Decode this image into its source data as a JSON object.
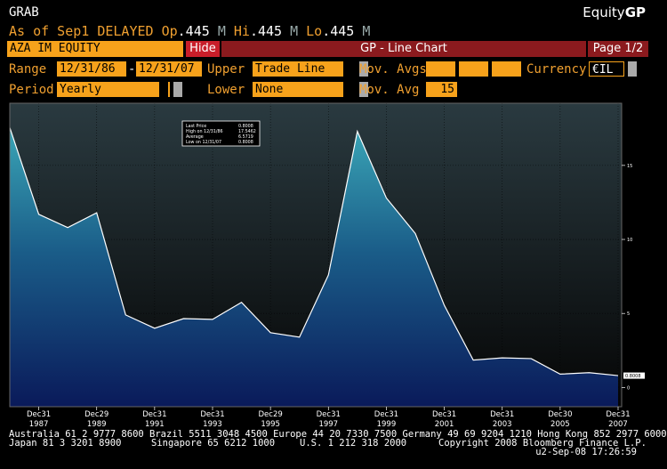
{
  "header": {
    "code": "GRAB",
    "brand_prefix": "Equity",
    "brand_suffix": "GP",
    "quote_line": {
      "as_of": "As of Sep1 DELAYED",
      "op_label": "Op",
      "op_value": ".445",
      "op_unit": "M",
      "hi_label": "Hi",
      "hi_value": ".445",
      "hi_unit": "M",
      "lo_label": "Lo",
      "lo_value": ".445",
      "lo_unit": "M"
    }
  },
  "bar": {
    "security": "AZA IM EQUITY",
    "hide": "Hide",
    "title": "GP - Line Chart",
    "page": "Page 1/2"
  },
  "controls": {
    "range_label": "Range",
    "range_start": "12/31/86",
    "range_sep": "-",
    "range_end": "12/31/07",
    "upper_label": "Upper",
    "upper_value": "Trade Line",
    "movavgs_label": "Mov. Avgs",
    "movavgs_values": [
      "",
      "",
      ""
    ],
    "currency_label": "Currency",
    "currency_value": "€IL",
    "period_label": "Period",
    "period_value": "Yearly",
    "lower_label": "Lower",
    "lower_value": "None",
    "movavg_label": "Mov. Avg",
    "movavg_value": "15"
  },
  "legend_box": {
    "lines": [
      {
        "label": "Last Price",
        "value": "0.8008"
      },
      {
        "label": "High on 12/31/86",
        "value": "17.5462"
      },
      {
        "label": "Average",
        "value": "6.5719"
      },
      {
        "label": "Low on 12/31/07",
        "value": "0.8008"
      }
    ]
  },
  "last_price_tag": "0.8008",
  "footer": {
    "line1": "Australia 61 2 9777 8600 Brazil 5511 3048 4500 Europe 44 20 7330 7500 Germany 49 69 9204 1210 Hong Kong 852 2977 6000",
    "line2_left": "Japan 81 3 3201 8900",
    "line2_mid1": "Singapore 65 6212 1000",
    "line2_mid2": "U.S. 1 212 318 2000",
    "line2_right": "Copyright 2008 Bloomberg Finance L.P.",
    "line3": "u2-Sep-08 17:26:59"
  },
  "chart_data": {
    "type": "area",
    "x": [
      "12/31/1986",
      "12/31/1987",
      "12/31/1988",
      "12/29/1989",
      "12/31/1990",
      "12/31/1991",
      "12/31/1992",
      "12/31/1993",
      "12/31/1994",
      "12/29/1995",
      "12/31/1996",
      "12/31/1997",
      "12/31/1998",
      "12/31/1999",
      "12/29/2000",
      "12/31/2001",
      "12/31/2002",
      "12/31/2003",
      "12/31/2004",
      "12/30/2005",
      "12/29/2006",
      "12/31/2007"
    ],
    "x_tick_labels": [
      {
        "top": "Dec31",
        "bottom": "1987"
      },
      {
        "top": "Dec29",
        "bottom": "1989"
      },
      {
        "top": "Dec31",
        "bottom": "1991"
      },
      {
        "top": "Dec31",
        "bottom": "1993"
      },
      {
        "top": "Dec29",
        "bottom": "1995"
      },
      {
        "top": "Dec31",
        "bottom": "1997"
      },
      {
        "top": "Dec31",
        "bottom": "1999"
      },
      {
        "top": "Dec31",
        "bottom": "2001"
      },
      {
        "top": "Dec31",
        "bottom": "2003"
      },
      {
        "top": "Dec30",
        "bottom": "2005"
      },
      {
        "top": "Dec31",
        "bottom": "2007"
      }
    ],
    "values": [
      17.55,
      11.7,
      10.8,
      11.8,
      4.9,
      4.0,
      4.65,
      4.6,
      5.75,
      3.7,
      3.4,
      7.6,
      17.3,
      12.8,
      10.4,
      5.55,
      1.85,
      2.0,
      1.95,
      0.9,
      1.0,
      0.8
    ],
    "y_ticks": [
      0,
      5,
      10,
      15
    ],
    "ylim": [
      -1.3,
      19.2
    ],
    "grid": true,
    "colors": {
      "line": "#ffffff",
      "fill_top": "#3aa5b6",
      "fill_bottom": "#0a1a5a",
      "bg_top": "#2a3a40",
      "bg_bottom": "#050505"
    }
  }
}
